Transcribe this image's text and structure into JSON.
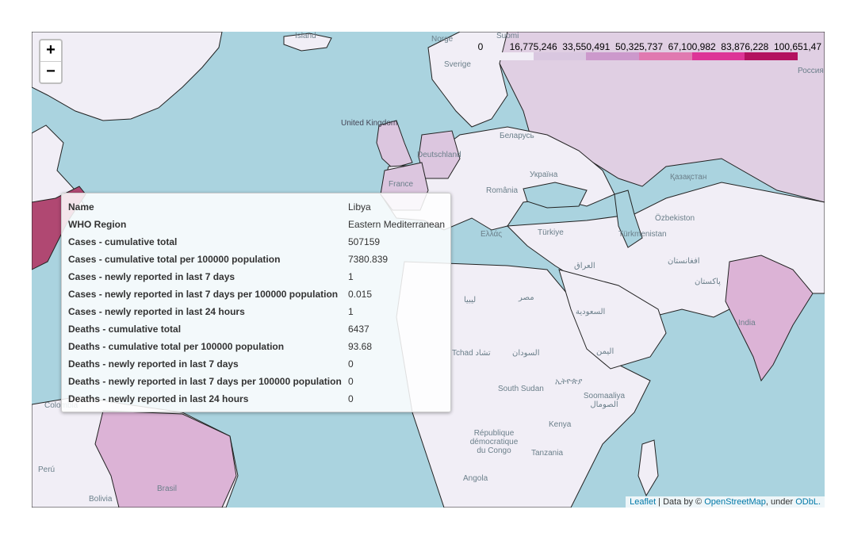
{
  "zoom": {
    "in_label": "+",
    "out_label": "−"
  },
  "legend": {
    "labels": [
      "0",
      "16,775,246",
      "33,550,491",
      "50,325,737",
      "67,100,982",
      "83,876,228",
      "100,651,47"
    ],
    "colors": [
      "#f1eef6",
      "#d9c7e0",
      "#cc99cc",
      "#e079b0",
      "#dd3497",
      "#b3115f"
    ]
  },
  "map_labels": [
    "Ísland",
    "Norge",
    "Suomi",
    "Sverige",
    "Россия",
    "United Kingdom",
    "Deutschland",
    "Беларусь",
    "France",
    "Україна",
    "România",
    "Қазақстан",
    "Türkiye",
    "Ελλάς",
    "Özbekiston",
    "Türkmenistan",
    "افغانستان",
    "العراق",
    "پاکستان",
    "India",
    "ليبيا",
    "مصر",
    "السعودية",
    "Tchad تشاد",
    "السودان",
    "اليمن",
    "South Sudan",
    "ኢትዮጵያ",
    "Soomaaliya الصومال",
    "Kenya",
    "République démocratique du Congo",
    "Tanzania",
    "Angola",
    "Brasil",
    "Perú",
    "Bolivia",
    "Colombia"
  ],
  "tooltip": {
    "rows": [
      {
        "key": "Name",
        "value": "Libya"
      },
      {
        "key": "WHO Region",
        "value": "Eastern Mediterranean"
      },
      {
        "key": "Cases - cumulative total",
        "value": "507159"
      },
      {
        "key": "Cases - cumulative total per 100000 population",
        "value": "7380.839"
      },
      {
        "key": "Cases - newly reported in last 7 days",
        "value": "1"
      },
      {
        "key": "Cases - newly reported in last 7 days per 100000 population",
        "value": "0.015"
      },
      {
        "key": "Cases - newly reported in last 24 hours",
        "value": "1"
      },
      {
        "key": "Deaths - cumulative total",
        "value": "6437"
      },
      {
        "key": "Deaths - cumulative total per 100000 population",
        "value": "93.68"
      },
      {
        "key": "Deaths - newly reported in last 7 days",
        "value": "0"
      },
      {
        "key": "Deaths - newly reported in last 7 days per 100000 population",
        "value": "0"
      },
      {
        "key": "Deaths - newly reported in last 24 hours",
        "value": "0"
      }
    ]
  },
  "attribution": {
    "leaflet": "Leaflet",
    "sep": " | Data by © ",
    "osm": "OpenStreetMap",
    "under": ", under ",
    "odbl": "ODbL."
  },
  "colors": {
    "water": "#aad3df",
    "land": "#f1eef6",
    "border": "#222222"
  }
}
